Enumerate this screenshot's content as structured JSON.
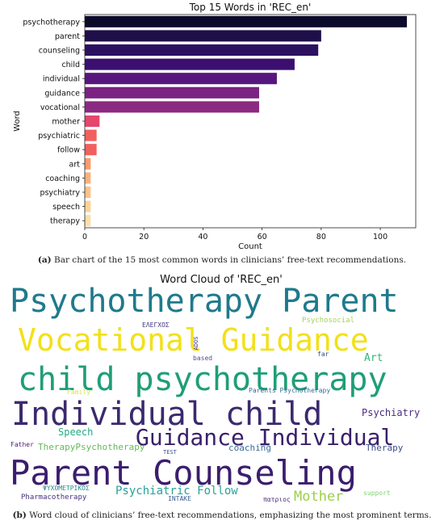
{
  "chart_data": [
    {
      "type": "bar",
      "orientation": "horizontal",
      "title": "Top 15 Words in 'REC_en'",
      "xlabel": "Count",
      "ylabel": "Word",
      "xlim": [
        0,
        112
      ],
      "xticks": [
        "0",
        "20",
        "40",
        "60",
        "80",
        "100"
      ],
      "grid": false,
      "categories": [
        "psychotherapy",
        "parent",
        "counseling",
        "child",
        "individual",
        "guidance",
        "vocational",
        "mother",
        "psychiatric",
        "follow",
        "art",
        "coaching",
        "psychiatry",
        "speech",
        "therapy"
      ],
      "values": [
        109,
        80,
        79,
        71,
        65,
        59,
        59,
        5,
        4,
        4,
        2,
        2,
        2,
        2,
        2
      ],
      "colors": [
        "#0c0a2a",
        "#1f0f48",
        "#2c1160",
        "#3b0f70",
        "#57157e",
        "#7b2382",
        "#8c2981",
        "#e5466b",
        "#f1605d",
        "#f1605d",
        "#fd9a6a",
        "#fdb17b",
        "#fec287",
        "#fed396",
        "#fcdea8"
      ]
    },
    {
      "type": "wordcloud",
      "title": "Word Cloud of 'REC_en'",
      "words": [
        {
          "text": "Psychotherapy Parent",
          "color": "#1f7a8c"
        },
        {
          "text": "Vocational Guidance",
          "color": "#f3e019"
        },
        {
          "text": "child psychotherapy",
          "color": "#1f9e77"
        },
        {
          "text": "Individual child",
          "color": "#3b2a6e"
        },
        {
          "text": "Guidance Individual",
          "color": "#3a1f6b"
        },
        {
          "text": "Parent Counseling",
          "color": "#3b1d6e"
        },
        {
          "text": "Psychiatric Follow",
          "color": "#2aa198"
        },
        {
          "text": "Mother",
          "color": "#9bd048"
        },
        {
          "text": "ΕΛΕΓΧΟΣ",
          "color": "#3e3580"
        },
        {
          "text": "ADOS",
          "color": "#46327e"
        },
        {
          "text": "Psychosocial",
          "color": "#a8d05a"
        },
        {
          "text": "far",
          "color": "#33538b"
        },
        {
          "text": "Art",
          "color": "#35b779"
        },
        {
          "text": "based",
          "color": "#5c4a8a"
        },
        {
          "text": "Family",
          "color": "#d9e34a"
        },
        {
          "text": "Parents Psychotherapy",
          "color": "#3a6a9c"
        },
        {
          "text": "Psychiatry",
          "color": "#4b2a80"
        },
        {
          "text": "Speech",
          "color": "#23a884"
        },
        {
          "text": "Father",
          "color": "#4b1f70"
        },
        {
          "text": "TherapyPsychotherapy",
          "color": "#65b95a"
        },
        {
          "text": "TEST",
          "color": "#3b528b"
        },
        {
          "text": "coaching",
          "color": "#3a6f99"
        },
        {
          "text": "Therapy",
          "color": "#3d4d8a"
        },
        {
          "text": "ΨΥΧΟΜΕΤΡΙΚΟΣ",
          "color": "#2a8c8c"
        },
        {
          "text": "INTAKE",
          "color": "#3b5f8f"
        },
        {
          "text": "Pharmacotherapy",
          "color": "#46307e"
        },
        {
          "text": "πατριος",
          "color": "#4a2c7c"
        },
        {
          "text": "support",
          "color": "#7fd36b"
        }
      ]
    }
  ],
  "captions": {
    "a_label": "(a)",
    "a_text": " Bar chart of the 15 most common words in clinicians’ free-text recommendations.",
    "b_label": "(b)",
    "b_text": " Word cloud of clinicians’ free-text recommendations, emphasizing the most prominent terms."
  }
}
